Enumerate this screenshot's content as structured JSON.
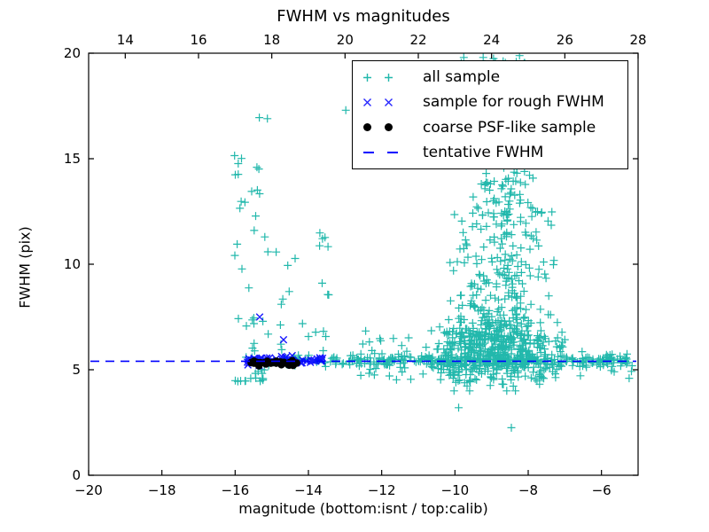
{
  "figure": {
    "title": "FWHM vs magnitudes",
    "xlabel": "magnitude (bottom:isnt / top:calib)",
    "ylabel": "FWHM (pix)"
  },
  "colors": {
    "all_sample": "#22b8ac",
    "rough_fwhm": "#0000ff",
    "psf_sample": "#000000",
    "tentative_line": "#0000ff",
    "axis": "#000000"
  },
  "chart_data": {
    "type": "scatter",
    "title": "FWHM vs magnitudes",
    "xlabel": "magnitude (bottom:isnt / top:calib)",
    "ylabel": "FWHM (pix)",
    "x_bottom": {
      "range": [
        -20,
        -5
      ],
      "ticks": [
        -20,
        -18,
        -16,
        -14,
        -12,
        -10,
        -8,
        -6
      ],
      "tick_labels": [
        "−20",
        "−18",
        "−16",
        "−14",
        "−12",
        "−10",
        "−8",
        "−6"
      ]
    },
    "x_top": {
      "range": [
        13,
        28
      ],
      "ticks": [
        14,
        16,
        18,
        20,
        22,
        24,
        26,
        28
      ],
      "tick_labels": [
        "14",
        "16",
        "18",
        "20",
        "22",
        "24",
        "26",
        "28"
      ],
      "offset_from_bottom": 33
    },
    "y": {
      "range": [
        0,
        20
      ],
      "ticks": [
        0,
        5,
        10,
        15,
        20
      ],
      "tick_labels": [
        "0",
        "5",
        "10",
        "15",
        "20"
      ]
    },
    "grid": false,
    "legend_position": "upper right",
    "tentative_fwhm": 5.4,
    "series": [
      {
        "name": "all sample",
        "marker": "plus",
        "color": "#22b8ac",
        "description": "full detected-source catalog; bright-star column near isnt mag -15.5 spanning FWHM 4.5-17, stellar locus ridge at FWHM ~5.4 from mag -15.5 to -5.3, and dense faint-end cloud at mag -11 to -6.5 with FWHM 4-20"
      },
      {
        "name": "sample for rough FWHM",
        "marker": "x",
        "color": "#0000ff",
        "description": "bright unsaturated stars on the locus, isnt mag -15.7 to -13.6 at FWHM ~5.45, with outliers near (-15.3, 7.5) and (-14.7, 6.4)"
      },
      {
        "name": "coarse PSF-like sample",
        "marker": "dot",
        "color": "#000000",
        "description": "tight PSF star cluster, isnt mag -15.6 to -14.3 at FWHM ~5.3"
      },
      {
        "name": "tentative FWHM",
        "marker": "dashed-line",
        "color": "#0000ff",
        "description": "horizontal dashed line at FWHM = 5.4 pix"
      }
    ],
    "seed": 20240042,
    "clusters": [
      {
        "series": 0,
        "count": 46,
        "mag": [
          "pow",
          -16.02,
          -15.18,
          1.0
        ],
        "fwhm": [
          "pow",
          4.45,
          15.2,
          2.0
        ]
      },
      {
        "series": 0,
        "count": 26,
        "mag": [
          "pow",
          -15.2,
          -13.25,
          1.0
        ],
        "fwhm": [
          "pow",
          5.9,
          11.5,
          1.4
        ]
      },
      {
        "series": 0,
        "count": 270,
        "mag": [
          "pow",
          -15.55,
          -5.25,
          0.72
        ],
        "fwhm": [
          "gauss",
          5.42,
          0.13,
          4.9,
          6.0
        ]
      },
      {
        "series": 0,
        "count": 85,
        "mag": [
          "pow",
          -13.0,
          -9.1,
          1.0
        ],
        "fwhm": [
          "gauss",
          5.45,
          0.5,
          3.9,
          7.3
        ]
      },
      {
        "series": 0,
        "count": 430,
        "mag": [
          "tri",
          -10.9,
          -6.85
        ],
        "fwhm": [
          "gauss",
          5.75,
          0.75,
          4.0,
          8.2
        ]
      },
      {
        "series": 0,
        "count": 265,
        "mag": [
          "tri",
          -10.35,
          -7.15
        ],
        "fwhm": [
          "pow",
          6.4,
          12.6,
          1.45
        ]
      },
      {
        "series": 0,
        "count": 135,
        "mag": [
          "tri",
          -9.95,
          -7.5
        ],
        "fwhm": [
          "pow",
          12.4,
          19.9,
          1.35
        ]
      },
      {
        "series": 0,
        "count": 14,
        "mag": [
          "pow",
          -6.6,
          -5.15,
          1.0
        ],
        "fwhm": [
          "gauss",
          5.35,
          0.4,
          4.4,
          6.2
        ]
      },
      {
        "series": 1,
        "count": 64,
        "mag": [
          "pow",
          -15.68,
          -13.58,
          1.25
        ],
        "fwhm": [
          "gauss",
          5.45,
          0.09,
          5.2,
          5.7
        ]
      },
      {
        "series": 2,
        "count": 34,
        "mag": [
          "pow",
          -15.58,
          -14.32,
          1.0
        ],
        "fwhm": [
          "gauss",
          5.32,
          0.06,
          5.15,
          5.5
        ]
      }
    ],
    "explicit_points": [
      {
        "series": 0,
        "points": [
          [
            -15.34,
            16.95
          ],
          [
            -15.12,
            16.9
          ],
          [
            -12.98,
            17.3
          ],
          [
            -9.23,
            19.8
          ],
          [
            -8.9,
            19.6
          ],
          [
            -8.46,
            2.25
          ],
          [
            -9.9,
            3.2
          ],
          [
            -7.37,
            11.85
          ],
          [
            -12.2,
            4.75
          ],
          [
            -10.05,
            4.6
          ]
        ]
      },
      {
        "series": 1,
        "points": [
          [
            -15.33,
            7.5
          ],
          [
            -14.68,
            6.42
          ]
        ]
      }
    ]
  }
}
